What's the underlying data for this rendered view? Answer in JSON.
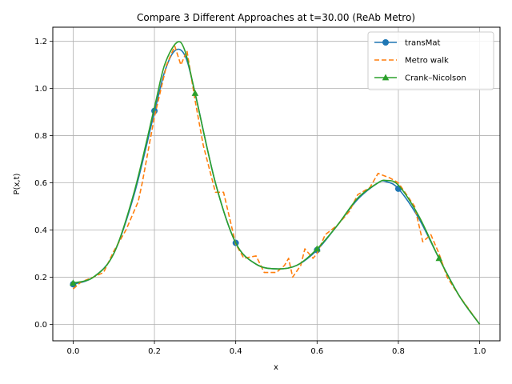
{
  "chart_data": {
    "type": "line",
    "title": "Compare 3 Different Approaches at t=30.00 (ReAb Metro)",
    "xlabel": "x",
    "ylabel": "P(x,t)",
    "xlim": [
      -0.05,
      1.05
    ],
    "ylim": [
      -0.07,
      1.26
    ],
    "xticks": [
      "0.0",
      "0.2",
      "0.4",
      "0.6",
      "0.8",
      "1.0"
    ],
    "xtick_values": [
      0.0,
      0.2,
      0.4,
      0.6,
      0.8,
      1.0
    ],
    "yticks": [
      "0.0",
      "0.2",
      "0.4",
      "0.6",
      "0.8",
      "1.0",
      "1.2"
    ],
    "ytick_values": [
      0.0,
      0.2,
      0.4,
      0.6,
      0.8,
      1.0,
      1.2
    ],
    "grid": true,
    "legend_position": "top-right",
    "series": [
      {
        "name": "transMat",
        "color": "#1f77b4",
        "style": "solid",
        "marker": "circle",
        "x": [
          0.0,
          0.05,
          0.1,
          0.15,
          0.2,
          0.225,
          0.25,
          0.275,
          0.3,
          0.35,
          0.4,
          0.45,
          0.5,
          0.55,
          0.6,
          0.65,
          0.7,
          0.75,
          0.77,
          0.8,
          0.85,
          0.9,
          0.95,
          1.0
        ],
        "y": [
          0.17,
          0.2,
          0.3,
          0.55,
          0.9,
          1.07,
          1.16,
          1.14,
          0.98,
          0.6,
          0.345,
          0.255,
          0.235,
          0.25,
          0.315,
          0.42,
          0.53,
          0.6,
          0.605,
          0.575,
          0.45,
          0.28,
          0.12,
          0.0
        ],
        "marker_x": [
          0.0,
          0.2,
          0.4,
          0.6,
          0.8
        ],
        "marker_y": [
          0.17,
          0.905,
          0.345,
          0.315,
          0.575
        ]
      },
      {
        "name": "Metro walk",
        "color": "#ff7f0e",
        "style": "dashed",
        "x": [
          0.0,
          0.02,
          0.05,
          0.075,
          0.1,
          0.13,
          0.16,
          0.17,
          0.2,
          0.23,
          0.25,
          0.265,
          0.28,
          0.3,
          0.32,
          0.35,
          0.37,
          0.4,
          0.42,
          0.45,
          0.47,
          0.5,
          0.52,
          0.53,
          0.54,
          0.56,
          0.57,
          0.59,
          0.6,
          0.62,
          0.65,
          0.68,
          0.7,
          0.73,
          0.75,
          0.78,
          0.8,
          0.82,
          0.84,
          0.86,
          0.88,
          0.9,
          0.92,
          0.95,
          1.0
        ],
        "y": [
          0.15,
          0.18,
          0.2,
          0.22,
          0.31,
          0.4,
          0.52,
          0.6,
          0.88,
          1.1,
          1.18,
          1.1,
          1.16,
          0.95,
          0.76,
          0.56,
          0.56,
          0.34,
          0.28,
          0.29,
          0.22,
          0.22,
          0.25,
          0.28,
          0.2,
          0.25,
          0.32,
          0.28,
          0.3,
          0.38,
          0.42,
          0.48,
          0.55,
          0.58,
          0.64,
          0.62,
          0.6,
          0.55,
          0.5,
          0.35,
          0.38,
          0.3,
          0.2,
          0.12,
          0.0
        ]
      },
      {
        "name": "Crank–Nicolson",
        "color": "#2ca02c",
        "style": "solid",
        "marker": "triangle",
        "x": [
          0.0,
          0.05,
          0.1,
          0.15,
          0.2,
          0.225,
          0.255,
          0.275,
          0.3,
          0.35,
          0.4,
          0.45,
          0.5,
          0.55,
          0.6,
          0.65,
          0.7,
          0.75,
          0.77,
          0.8,
          0.85,
          0.9,
          0.95,
          1.0
        ],
        "y": [
          0.175,
          0.2,
          0.3,
          0.56,
          0.92,
          1.1,
          1.195,
          1.16,
          0.98,
          0.6,
          0.345,
          0.255,
          0.235,
          0.25,
          0.32,
          0.42,
          0.535,
          0.6,
          0.61,
          0.59,
          0.46,
          0.28,
          0.12,
          0.0
        ],
        "marker_x": [
          0.0,
          0.3,
          0.6,
          0.9
        ],
        "marker_y": [
          0.175,
          0.98,
          0.32,
          0.28
        ]
      }
    ]
  }
}
